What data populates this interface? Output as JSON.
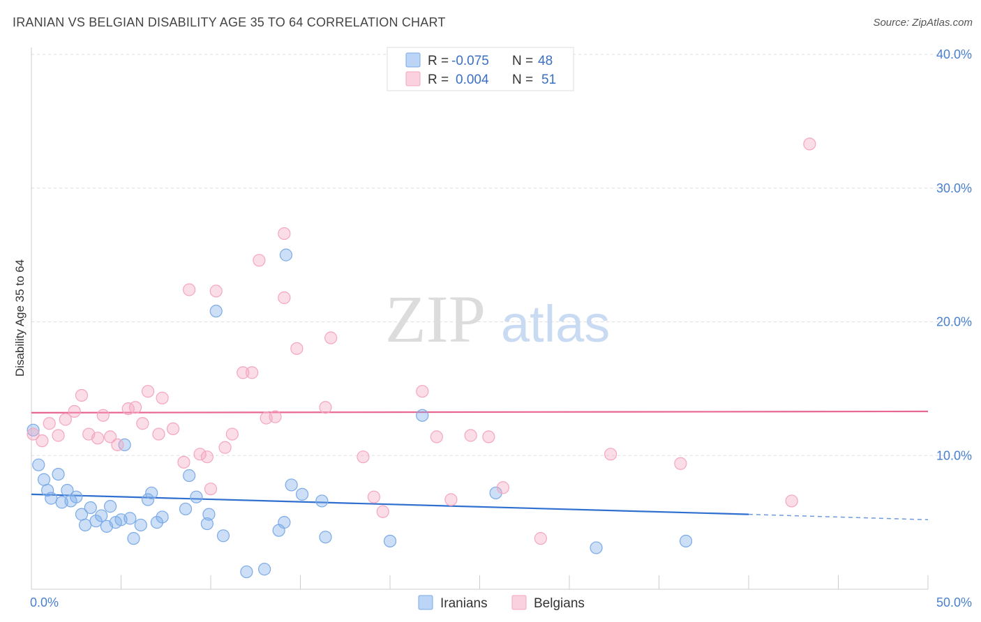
{
  "header": {
    "title": "IRANIAN VS BELGIAN DISABILITY AGE 35 TO 64 CORRELATION CHART",
    "source": "Source: ZipAtlas.com"
  },
  "watermark": {
    "zip": "ZIP",
    "atlas": "atlas"
  },
  "chart_data": {
    "type": "scatter",
    "title": "IRANIAN VS BELGIAN DISABILITY AGE 35 TO 64 CORRELATION CHART",
    "xlabel": "",
    "ylabel": "Disability Age 35 to 64",
    "xlim": [
      0,
      50
    ],
    "ylim": [
      0,
      40
    ],
    "x_tick_labels": [
      "0.0%",
      "50.0%"
    ],
    "y_ticks": [
      10,
      20,
      30,
      40
    ],
    "y_tick_labels": [
      "10.0%",
      "20.0%",
      "30.0%",
      "40.0%"
    ],
    "grid": true,
    "legend_position": "top-center",
    "series": [
      {
        "name": "Iranians",
        "color": "#7aaae8",
        "line_color": "#2f6fcf",
        "r_label": "R =",
        "r_value": "-0.075",
        "n_label": "N =",
        "n_value": "48",
        "trend": {
          "x0": 0,
          "y0": 7.1,
          "x1": 40,
          "y1": 5.6,
          "dashed_to": 50,
          "dashed_y": 5.2
        },
        "points": [
          [
            0.1,
            11.9
          ],
          [
            0.4,
            9.3
          ],
          [
            0.7,
            8.2
          ],
          [
            0.9,
            7.4
          ],
          [
            1.1,
            6.8
          ],
          [
            1.5,
            8.6
          ],
          [
            1.7,
            6.5
          ],
          [
            2.0,
            7.4
          ],
          [
            2.2,
            6.6
          ],
          [
            2.5,
            6.9
          ],
          [
            2.8,
            5.6
          ],
          [
            3.0,
            4.8
          ],
          [
            3.3,
            6.1
          ],
          [
            3.6,
            5.1
          ],
          [
            3.9,
            5.5
          ],
          [
            4.2,
            4.7
          ],
          [
            4.4,
            6.2
          ],
          [
            4.7,
            5.0
          ],
          [
            5.0,
            5.2
          ],
          [
            5.2,
            10.8
          ],
          [
            5.5,
            5.3
          ],
          [
            5.7,
            3.8
          ],
          [
            6.1,
            4.8
          ],
          [
            6.5,
            6.7
          ],
          [
            6.7,
            7.2
          ],
          [
            7.0,
            5.0
          ],
          [
            7.3,
            5.4
          ],
          [
            8.6,
            6.0
          ],
          [
            8.8,
            8.5
          ],
          [
            9.2,
            6.9
          ],
          [
            9.8,
            4.9
          ],
          [
            9.9,
            5.6
          ],
          [
            10.3,
            20.8
          ],
          [
            10.7,
            4.0
          ],
          [
            12.0,
            1.3
          ],
          [
            13.0,
            1.5
          ],
          [
            13.8,
            4.4
          ],
          [
            14.1,
            5.0
          ],
          [
            14.2,
            25.0
          ],
          [
            14.5,
            7.8
          ],
          [
            15.1,
            7.1
          ],
          [
            16.2,
            6.6
          ],
          [
            16.4,
            3.9
          ],
          [
            20.0,
            3.6
          ],
          [
            21.8,
            13.0
          ],
          [
            25.9,
            7.2
          ],
          [
            31.5,
            3.1
          ],
          [
            36.5,
            3.6
          ]
        ]
      },
      {
        "name": "Belgians",
        "color": "#f4a6bf",
        "line_color": "#e8668f",
        "r_label": "R =",
        "r_value": "0.004",
        "n_label": "N =",
        "n_value": "51",
        "trend": {
          "x0": 0,
          "y0": 13.2,
          "x1": 50,
          "y1": 13.3
        },
        "points": [
          [
            0.1,
            11.6
          ],
          [
            0.6,
            11.1
          ],
          [
            1.0,
            12.4
          ],
          [
            1.5,
            11.5
          ],
          [
            1.9,
            12.7
          ],
          [
            2.4,
            13.3
          ],
          [
            2.8,
            14.5
          ],
          [
            3.2,
            11.6
          ],
          [
            3.7,
            11.3
          ],
          [
            4.0,
            13.0
          ],
          [
            4.4,
            11.4
          ],
          [
            4.8,
            10.8
          ],
          [
            5.4,
            13.5
          ],
          [
            5.8,
            13.6
          ],
          [
            6.2,
            12.4
          ],
          [
            6.5,
            14.8
          ],
          [
            7.1,
            11.6
          ],
          [
            7.3,
            14.3
          ],
          [
            7.9,
            12.0
          ],
          [
            8.5,
            9.5
          ],
          [
            8.8,
            22.4
          ],
          [
            9.4,
            10.1
          ],
          [
            9.8,
            9.9
          ],
          [
            10.0,
            7.5
          ],
          [
            10.3,
            22.3
          ],
          [
            10.8,
            10.6
          ],
          [
            11.2,
            11.6
          ],
          [
            11.8,
            16.2
          ],
          [
            12.3,
            16.2
          ],
          [
            12.7,
            24.6
          ],
          [
            13.1,
            12.8
          ],
          [
            13.6,
            12.9
          ],
          [
            14.1,
            26.6
          ],
          [
            14.1,
            21.8
          ],
          [
            14.8,
            18.0
          ],
          [
            16.4,
            13.6
          ],
          [
            16.7,
            18.8
          ],
          [
            18.5,
            9.9
          ],
          [
            19.1,
            6.9
          ],
          [
            19.6,
            5.8
          ],
          [
            21.8,
            14.8
          ],
          [
            22.6,
            11.4
          ],
          [
            23.4,
            6.7
          ],
          [
            24.5,
            11.5
          ],
          [
            25.5,
            11.4
          ],
          [
            26.3,
            7.6
          ],
          [
            28.4,
            3.8
          ],
          [
            32.3,
            10.1
          ],
          [
            36.2,
            9.4
          ],
          [
            42.4,
            6.6
          ],
          [
            43.4,
            33.3
          ]
        ]
      }
    ]
  }
}
